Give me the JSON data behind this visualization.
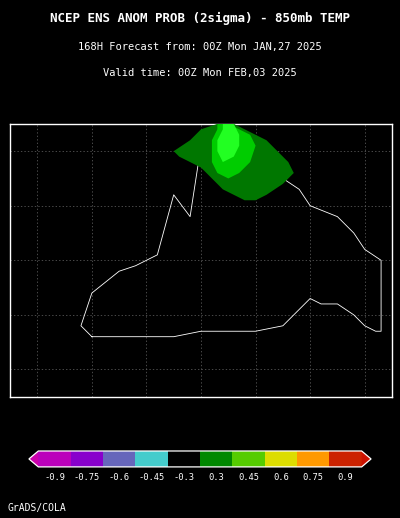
{
  "title_line1": "NCEP ENS ANOM PROB (2sigma) – 850mb TEMP",
  "title_line1_plain": "NCEP ENS ANOM PROB (2sigma) - 850mb TEMP",
  "title_line2": "168H Forecast from: 00Z Mon JAN,27 2025",
  "title_line3": "Valid time: 00Z Mon FEB,03 2025",
  "title_fontsize": 9.0,
  "subtitle_fontsize": 7.5,
  "background_color": "#000000",
  "text_color": "#ffffff",
  "colorbar_labels": [
    "-0.9",
    "-0.75",
    "-0.6",
    "-0.45",
    "-0.3",
    "0.3",
    "0.45",
    "0.6",
    "0.75",
    "0.9"
  ],
  "colorbar_colors": [
    "#bb00bb",
    "#8800cc",
    "#6666bb",
    "#44cccc",
    "#000000",
    "#008800",
    "#55cc00",
    "#dddd00",
    "#ff9900",
    "#cc2200"
  ],
  "left_arrow_color": "#cc00aa",
  "right_arrow_color": "#cc1100",
  "grads_cola_text": "GrADS/COLA",
  "grads_fontsize": 7,
  "map_lon_min": -25,
  "map_lon_max": 45,
  "map_lat_min": 25,
  "map_lat_max": 75,
  "grid_lons": [
    -20,
    -10,
    0,
    10,
    20,
    30,
    40
  ],
  "grid_lats": [
    30,
    40,
    50,
    60,
    70
  ],
  "coastline_color": "#ffffff",
  "border_color": "#ffffff",
  "gridline_color": "#666666"
}
